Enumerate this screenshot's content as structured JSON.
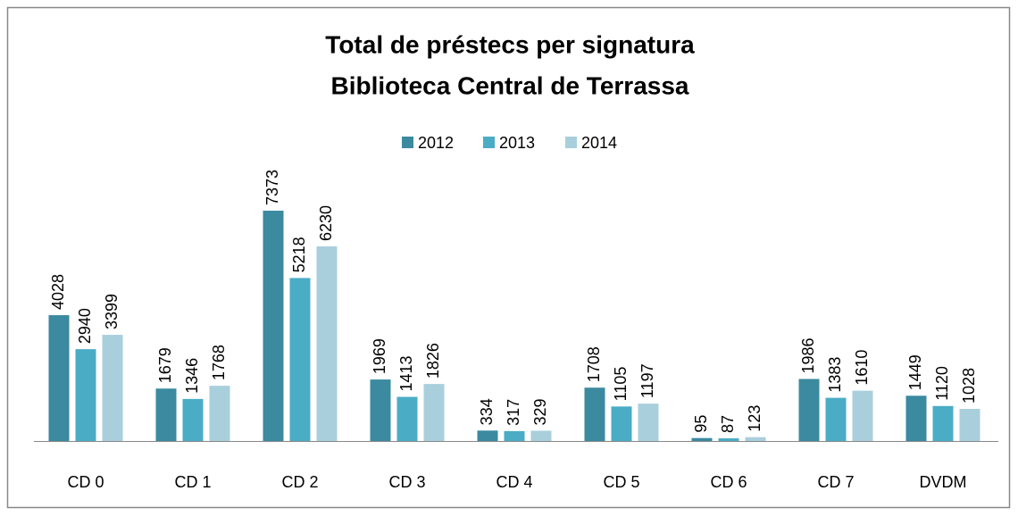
{
  "chart_data": {
    "type": "bar",
    "title": [
      "Total de préstecs per signatura",
      "Biblioteca Central de Terrassa"
    ],
    "categories": [
      "CD 0",
      "CD 1",
      "CD 2",
      "CD 3",
      "CD 4",
      "CD 5",
      "CD 6",
      "CD 7",
      "DVDM"
    ],
    "series": [
      {
        "name": "2012",
        "color": "#3b8aa0",
        "values": [
          4028,
          1679,
          7373,
          1969,
          334,
          1708,
          95,
          1986,
          1449
        ]
      },
      {
        "name": "2013",
        "color": "#4bacc6",
        "values": [
          2940,
          1346,
          5218,
          1413,
          317,
          1105,
          87,
          1383,
          1120
        ]
      },
      {
        "name": "2014",
        "color": "#a9cfdc",
        "values": [
          3399,
          1768,
          6230,
          1826,
          329,
          1197,
          123,
          1610,
          1028
        ]
      }
    ],
    "legend": "top"
  }
}
